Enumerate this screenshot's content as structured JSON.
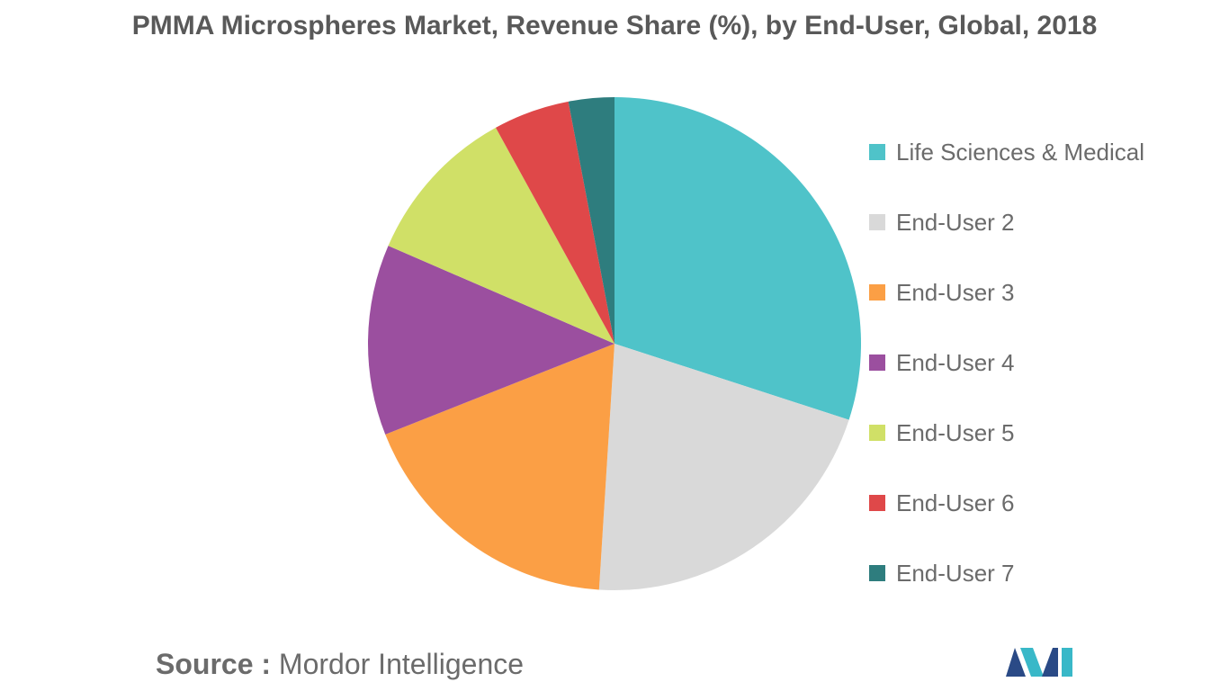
{
  "chart_data": {
    "type": "pie",
    "title": "PMMA Microspheres Market, Revenue Share (%), by End-User, Global, 2018",
    "categories": [
      "Life Sciences & Medical",
      "End-User 2",
      "End-User 3",
      "End-User 4",
      "End-User 5",
      "End-User 6",
      "End-User 7"
    ],
    "values": [
      30,
      21,
      18,
      12.5,
      10.5,
      5,
      3
    ],
    "colors": [
      "#4fc3c9",
      "#d9d9d9",
      "#fb9f45",
      "#9b4f9f",
      "#d0e067",
      "#df4849",
      "#2e7d7e"
    ],
    "legend_position": "right",
    "start_angle": "12 o'clock",
    "direction": "clockwise"
  },
  "source": {
    "label": "Source :",
    "text": "Mordor Intelligence"
  },
  "logo": {
    "icon": "mordor-intelligence-logo-icon",
    "colors": [
      "#2a4a86",
      "#39b8c8"
    ]
  }
}
